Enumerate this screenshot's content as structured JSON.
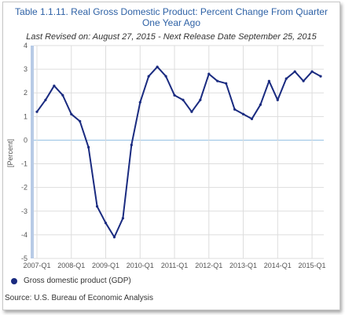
{
  "chart_data": {
    "type": "line",
    "title": "Table 1.1.11. Real Gross Domestic Product: Percent Change From Quarter One Year Ago",
    "subtitle": "Last Revised on: August 27, 2015 - Next Release Date September 25, 2015",
    "ylabel": "[Percent]",
    "xlabel": "",
    "ylim": [
      -5,
      4
    ],
    "yticks": [
      "4",
      "3",
      "2",
      "1",
      "0",
      "-1",
      "-2",
      "-3",
      "-4",
      "-5"
    ],
    "xtick_labels": [
      "2007-Q1",
      "2008-Q1",
      "2009-Q1",
      "2010-Q1",
      "2011-Q1",
      "2012-Q1",
      "2013-Q1",
      "2014-Q1",
      "2015-Q1"
    ],
    "grid": true,
    "legend_position": "bottom-left",
    "x": [
      "2007-Q1",
      "2007-Q2",
      "2007-Q3",
      "2007-Q4",
      "2008-Q1",
      "2008-Q2",
      "2008-Q3",
      "2008-Q4",
      "2009-Q1",
      "2009-Q2",
      "2009-Q3",
      "2009-Q4",
      "2010-Q1",
      "2010-Q2",
      "2010-Q3",
      "2010-Q4",
      "2011-Q1",
      "2011-Q2",
      "2011-Q3",
      "2011-Q4",
      "2012-Q1",
      "2012-Q2",
      "2012-Q3",
      "2012-Q4",
      "2013-Q1",
      "2013-Q2",
      "2013-Q3",
      "2013-Q4",
      "2014-Q1",
      "2014-Q2",
      "2014-Q3",
      "2014-Q4",
      "2015-Q1",
      "2015-Q2"
    ],
    "series": [
      {
        "name": "Gross domestic product (GDP)",
        "color": "#1a2b80",
        "values": [
          1.2,
          1.7,
          2.3,
          1.9,
          1.1,
          0.8,
          -0.3,
          -2.8,
          -3.5,
          -4.1,
          -3.3,
          -0.2,
          1.6,
          2.7,
          3.1,
          2.7,
          1.9,
          1.7,
          1.2,
          1.7,
          2.8,
          2.5,
          2.4,
          1.3,
          1.1,
          0.9,
          1.5,
          2.5,
          1.7,
          2.6,
          2.9,
          2.5,
          2.9,
          2.7
        ]
      }
    ]
  },
  "legend": {
    "label": "Gross domestic product (GDP)"
  },
  "source": "Source: U.S. Bureau of Economic  Analysis",
  "colors": {
    "title": "#2f62a6",
    "line": "#1a2b80",
    "grid": "#dddddd",
    "zero_line": "#9ec6e6",
    "axis_bar": "#b8cbe6"
  }
}
